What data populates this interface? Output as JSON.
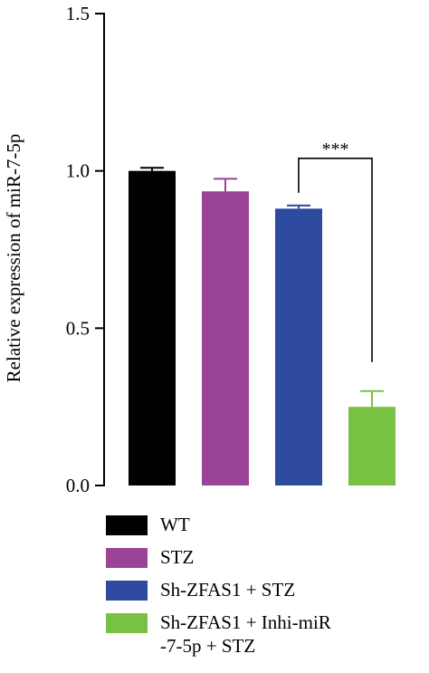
{
  "chart_data": {
    "type": "bar",
    "ylabel": "Relative expression of miR-7-5p",
    "ylim": [
      0,
      1.5
    ],
    "yticks": [
      "0.0",
      "0.5",
      "1.0",
      "1.5"
    ],
    "series": [
      {
        "name": "WT",
        "value": 1.0,
        "error": 0.01,
        "color": "#000000"
      },
      {
        "name": "STZ",
        "value": 0.935,
        "error": 0.04,
        "color": "#9b4496"
      },
      {
        "name": "Sh-ZFAS1 + STZ",
        "value": 0.88,
        "error": 0.01,
        "color": "#2e4a9e"
      },
      {
        "name": "Sh-ZFAS1 + Inhi-miR\n-7-5p + STZ",
        "value": 0.25,
        "error": 0.05,
        "color": "#79c143"
      }
    ],
    "significance": {
      "label": "***",
      "between": [
        2,
        3
      ]
    },
    "legend": "bottom"
  }
}
